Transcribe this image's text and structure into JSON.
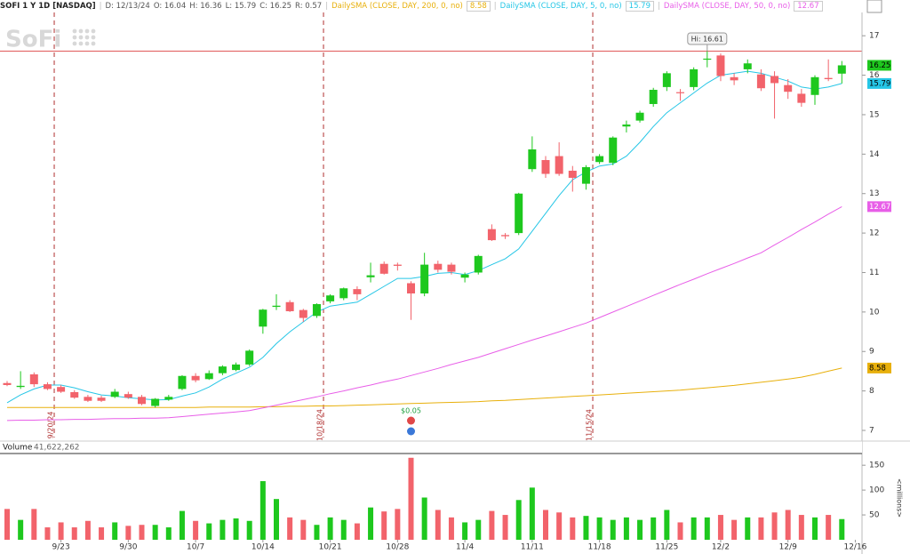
{
  "header": {
    "symbol": "SOFI 1 Y 1D [NASDAQ]",
    "date": "D: 12/13/24",
    "open": "O: 16.04",
    "high": "H: 16.36",
    "low": "L: 15.79",
    "close": "C: 16.25",
    "range": "R: 0.57"
  },
  "logo": "SoFi",
  "chart_data": {
    "type": "candlestick",
    "categories": [
      null,
      null,
      null,
      null,
      "9/23",
      null,
      null,
      null,
      null,
      "9/30",
      null,
      null,
      null,
      null,
      "10/7",
      null,
      null,
      null,
      null,
      "10/14",
      null,
      null,
      null,
      null,
      "10/21",
      null,
      null,
      null,
      null,
      "10/28",
      null,
      null,
      null,
      null,
      "11/4",
      null,
      null,
      null,
      null,
      "11/11",
      null,
      null,
      null,
      null,
      "11/18",
      null,
      null,
      null,
      null,
      "11/25",
      null,
      null,
      null,
      "12/2",
      null,
      null,
      null,
      null,
      "12/9",
      null,
      null,
      null,
      null,
      "12/16"
    ],
    "open": [
      8.2,
      8.1,
      8.42,
      8.17,
      8.1,
      7.97,
      7.85,
      7.83,
      7.85,
      7.92,
      7.85,
      7.62,
      7.78,
      8.05,
      8.38,
      8.3,
      8.45,
      8.53,
      8.67,
      9.63,
      10.13,
      10.25,
      10.05,
      9.9,
      10.27,
      10.35,
      10.58,
      10.88,
      11.22,
      11.2,
      10.73,
      10.47,
      11.22,
      11.2,
      10.87,
      11.0,
      12.1,
      11.95,
      12.0,
      13.62,
      13.85,
      13.95,
      13.58,
      13.25,
      13.8,
      13.78,
      14.7,
      14.85,
      15.27,
      15.7,
      15.57,
      15.7,
      16.4,
      16.5,
      15.95,
      16.15,
      16.02,
      15.98,
      15.75,
      15.53,
      15.5,
      15.93,
      16.04,
      null
    ],
    "high": [
      8.25,
      8.5,
      8.47,
      8.22,
      8.15,
      8.02,
      7.9,
      7.88,
      8.05,
      7.98,
      7.9,
      7.82,
      7.9,
      8.4,
      8.45,
      8.52,
      8.65,
      8.72,
      9.05,
      10.08,
      10.45,
      10.3,
      10.08,
      10.22,
      10.45,
      10.62,
      10.65,
      11.25,
      11.28,
      11.25,
      10.78,
      11.5,
      11.3,
      11.25,
      11.0,
      11.45,
      12.22,
      12.0,
      13.02,
      14.45,
      13.95,
      14.3,
      13.7,
      13.72,
      14.0,
      14.45,
      14.85,
      15.1,
      15.68,
      16.1,
      15.65,
      16.2,
      16.61,
      16.55,
      16.05,
      16.4,
      16.15,
      16.1,
      15.9,
      15.65,
      16.0,
      16.4,
      16.36,
      null
    ],
    "low": [
      8.12,
      8.05,
      8.1,
      8.02,
      7.95,
      7.8,
      7.72,
      7.72,
      7.82,
      7.8,
      7.64,
      7.58,
      7.75,
      8.02,
      8.22,
      8.28,
      8.4,
      8.5,
      8.63,
      9.45,
      10.05,
      10.0,
      9.75,
      9.85,
      10.22,
      10.3,
      10.3,
      10.75,
      10.95,
      11.05,
      9.8,
      10.4,
      11.0,
      10.95,
      10.75,
      10.95,
      11.8,
      11.85,
      11.95,
      13.55,
      13.4,
      13.45,
      13.05,
      13.1,
      13.75,
      13.72,
      14.55,
      14.8,
      15.2,
      15.6,
      15.35,
      15.62,
      16.2,
      15.85,
      15.75,
      16.05,
      15.6,
      14.9,
      15.4,
      15.2,
      15.25,
      15.85,
      15.79,
      null
    ],
    "close": [
      8.15,
      8.13,
      8.17,
      8.05,
      7.98,
      7.83,
      7.75,
      7.75,
      7.98,
      7.83,
      7.67,
      7.8,
      7.85,
      8.38,
      8.27,
      8.45,
      8.62,
      8.67,
      9.02,
      10.06,
      10.16,
      10.02,
      9.85,
      10.2,
      10.42,
      10.6,
      10.45,
      10.93,
      10.97,
      11.17,
      10.47,
      11.2,
      11.07,
      11.02,
      10.95,
      11.42,
      11.82,
      11.92,
      13.0,
      14.12,
      13.5,
      13.5,
      13.4,
      13.67,
      13.95,
      14.42,
      14.75,
      15.05,
      15.63,
      16.05,
      15.55,
      16.15,
      16.42,
      15.98,
      15.87,
      16.3,
      15.67,
      15.8,
      15.58,
      15.3,
      15.95,
      15.9,
      16.25,
      null
    ],
    "up_color": "#1ec81e",
    "down_color": "#f2636b",
    "ylim": [
      6.82,
      17.5
    ],
    "yticks": [
      7,
      8,
      9,
      10,
      11,
      12,
      13,
      14,
      15,
      16,
      17
    ],
    "sma": [
      {
        "name": "DailySMA (CLOSE, DAY, 200, 0, no)",
        "color": "#e8b00c",
        "values": [
          7.58,
          7.58,
          7.58,
          7.58,
          7.58,
          7.58,
          7.58,
          7.58,
          7.58,
          7.58,
          7.58,
          7.58,
          7.58,
          7.58,
          7.58,
          7.59,
          7.59,
          7.59,
          7.59,
          7.6,
          7.6,
          7.61,
          7.61,
          7.62,
          7.62,
          7.63,
          7.64,
          7.65,
          7.66,
          7.67,
          7.68,
          7.69,
          7.7,
          7.71,
          7.72,
          7.73,
          7.75,
          7.76,
          7.78,
          7.8,
          7.82,
          7.84,
          7.86,
          7.88,
          7.9,
          7.92,
          7.94,
          7.96,
          7.98,
          8.0,
          8.02,
          8.05,
          8.08,
          8.11,
          8.14,
          8.18,
          8.22,
          8.26,
          8.3,
          8.35,
          8.42,
          8.5,
          8.58,
          null
        ]
      },
      {
        "name": "DailySMA (CLOSE, DAY, 5, 0, no)",
        "color": "#25c6e6",
        "values": [
          7.7,
          7.9,
          8.05,
          8.15,
          8.15,
          8.08,
          7.98,
          7.9,
          7.87,
          7.83,
          7.8,
          7.77,
          7.78,
          7.87,
          7.95,
          8.1,
          8.3,
          8.45,
          8.6,
          8.85,
          9.2,
          9.5,
          9.75,
          10.0,
          10.15,
          10.2,
          10.25,
          10.45,
          10.65,
          10.85,
          10.85,
          10.9,
          10.98,
          11.0,
          10.95,
          11.05,
          11.2,
          11.35,
          11.6,
          12.05,
          12.5,
          12.95,
          13.35,
          13.55,
          13.7,
          13.75,
          13.95,
          14.3,
          14.7,
          15.05,
          15.3,
          15.55,
          15.8,
          16.0,
          16.05,
          16.1,
          16.05,
          15.95,
          15.85,
          15.7,
          15.65,
          15.7,
          15.79,
          null
        ]
      },
      {
        "name": "DailySMA (CLOSE, DAY, 50, 0, no)",
        "color": "#e85ee8",
        "values": [
          7.25,
          7.26,
          7.26,
          7.27,
          7.27,
          7.28,
          7.28,
          7.29,
          7.3,
          7.3,
          7.31,
          7.31,
          7.32,
          7.35,
          7.38,
          7.41,
          7.44,
          7.47,
          7.5,
          7.57,
          7.64,
          7.71,
          7.78,
          7.85,
          7.93,
          8.0,
          8.08,
          8.15,
          8.23,
          8.3,
          8.39,
          8.48,
          8.57,
          8.67,
          8.76,
          8.85,
          8.96,
          9.07,
          9.18,
          9.29,
          9.39,
          9.5,
          9.61,
          9.72,
          9.86,
          10.0,
          10.14,
          10.28,
          10.42,
          10.56,
          10.7,
          10.83,
          10.97,
          11.1,
          11.23,
          11.37,
          11.5,
          11.7,
          11.89,
          12.09,
          12.28,
          12.48,
          12.67,
          null
        ]
      }
    ],
    "hi_marker": {
      "label": "Hi: 16.61",
      "value": 16.61,
      "color": "#e05a5a"
    },
    "session_lines": [
      "9/20/24",
      "10/18/24",
      "11/15/24"
    ],
    "dividend": "$0.05",
    "volume": {
      "title": "Volume",
      "last": "41,622,262",
      "values": [
        62,
        40,
        62,
        25,
        35,
        25,
        38,
        25,
        35,
        28,
        30,
        30,
        25,
        58,
        38,
        33,
        40,
        43,
        38,
        118,
        82,
        45,
        40,
        30,
        45,
        40,
        33,
        65,
        57,
        62,
        165,
        85,
        60,
        45,
        35,
        40,
        58,
        50,
        80,
        105,
        60,
        55,
        45,
        48,
        45,
        40,
        45,
        40,
        45,
        60,
        35,
        45,
        45,
        50,
        40,
        45,
        45,
        55,
        60,
        50,
        45,
        50,
        41.622262,
        null
      ],
      "ylim": [
        0,
        170
      ],
      "yticks": [
        50,
        100,
        150
      ],
      "axis_label": "<millions>"
    }
  }
}
